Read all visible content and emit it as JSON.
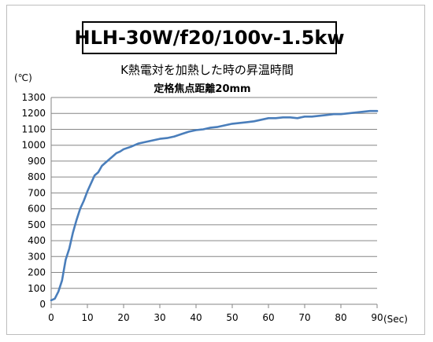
{
  "chart_data": {
    "type": "line",
    "model_label": "HLH-30W/f20/100v-1.5kw",
    "title": "K熱電対を加熱した時の昇温時間",
    "subtitle": "定格焦点距離20mm",
    "xlabel": "(Sec)",
    "ylabel": "(℃)",
    "xlim": [
      0,
      90
    ],
    "ylim": [
      0,
      1300
    ],
    "xticks": [
      "0",
      "10",
      "20",
      "30",
      "40",
      "50",
      "60",
      "70",
      "80",
      "90"
    ],
    "yticks": [
      "0",
      "100",
      "200",
      "300",
      "400",
      "500",
      "600",
      "700",
      "800",
      "900",
      "1000",
      "1100",
      "1200",
      "1300"
    ],
    "grid": "horizontal",
    "line_color": "#4a7ebb",
    "series": [
      {
        "x": [
          0,
          1,
          2,
          3,
          4,
          5,
          6,
          7,
          8,
          9,
          10,
          11,
          12,
          13,
          14,
          15,
          16,
          17,
          18,
          19,
          20,
          22,
          24,
          26,
          28,
          30,
          32,
          34,
          36,
          38,
          40,
          42,
          44,
          46,
          48,
          50,
          52,
          54,
          56,
          58,
          60,
          62,
          64,
          66,
          68,
          70,
          72,
          74,
          76,
          78,
          80,
          82,
          84,
          86,
          88,
          90
        ],
        "y": [
          25,
          35,
          80,
          150,
          280,
          350,
          450,
          530,
          600,
          650,
          710,
          760,
          810,
          830,
          870,
          890,
          910,
          930,
          950,
          960,
          975,
          990,
          1010,
          1020,
          1030,
          1040,
          1045,
          1055,
          1070,
          1085,
          1095,
          1100,
          1110,
          1115,
          1125,
          1135,
          1140,
          1145,
          1150,
          1160,
          1170,
          1170,
          1175,
          1175,
          1170,
          1180,
          1180,
          1185,
          1190,
          1195,
          1195,
          1200,
          1205,
          1210,
          1215,
          1215
        ]
      }
    ]
  }
}
